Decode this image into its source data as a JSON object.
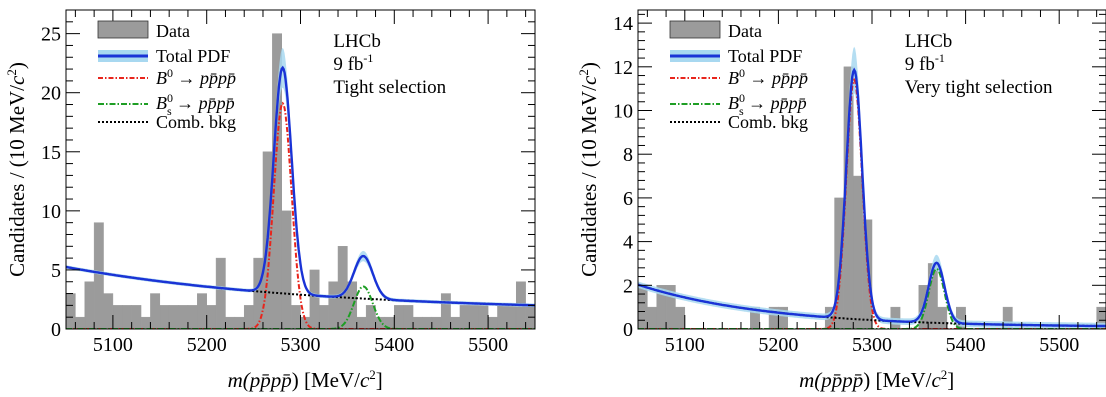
{
  "chart_data": [
    {
      "type": "bar",
      "x_bins_start": 5050,
      "x_bin_width": 10,
      "xlim": [
        5050,
        5550
      ],
      "ylim": [
        0,
        27
      ],
      "yticks": [
        0,
        5,
        10,
        15,
        20,
        25
      ],
      "xticks": [
        5100,
        5200,
        5300,
        5400,
        5500
      ],
      "xlabel_main": "m(",
      "xlabel_particles": "pp̄pp̄",
      "xlabel_units": ") [MeV/",
      "xlabel_c": "c",
      "xlabel_end": "]",
      "ylabel_main": "Candidates / (10 MeV/",
      "ylabel_c": "c",
      "ylabel_end": ")",
      "experiment": "LHCb",
      "lumi_value": "9 fb",
      "lumi_exp": "-1",
      "selection": "Tight selection",
      "legend": [
        "Data",
        "Total PDF",
        "B0 → pp̄pp̄",
        "Bs0 → pp̄pp̄",
        "Comb. bkg"
      ],
      "hist": [
        3,
        1,
        4,
        9,
        3,
        2,
        2,
        2,
        1,
        3,
        2,
        2,
        2,
        2,
        3,
        2,
        6,
        1,
        1,
        2,
        6,
        15,
        25,
        10,
        2,
        1,
        5,
        2,
        4,
        7,
        4,
        1,
        2,
        1,
        1,
        2,
        2,
        1,
        1,
        1,
        3,
        1,
        2,
        2,
        2,
        1,
        2,
        2,
        4,
        2
      ],
      "model": {
        "bkg_a": 3.8,
        "bkg_b": 1.45,
        "bkg_tau": 260,
        "b0_amp": 19.1,
        "b0_mean": 5281,
        "b0_sigma": 9.5,
        "bs_amp": 3.6,
        "bs_mean": 5367,
        "bs_sigma": 10.0
      }
    },
    {
      "type": "bar",
      "x_bins_start": 5050,
      "x_bin_width": 10,
      "xlim": [
        5050,
        5550
      ],
      "ylim": [
        0,
        14.6
      ],
      "yticks": [
        0,
        2,
        4,
        6,
        8,
        10,
        12,
        14
      ],
      "xticks": [
        5100,
        5200,
        5300,
        5400,
        5500
      ],
      "xlabel_main": "m(",
      "xlabel_particles": "pp̄pp̄",
      "xlabel_units": ") [MeV/",
      "xlabel_c": "c",
      "xlabel_end": "]",
      "ylabel_main": "Candidates / (10 MeV/",
      "ylabel_c": "c",
      "ylabel_end": ")",
      "experiment": "LHCb",
      "lumi_value": "9 fb",
      "lumi_exp": "-1",
      "selection": "Very tight selection",
      "legend": [
        "Data",
        "Total PDF",
        "B0 → pp̄pp̄",
        "Bs0 → pp̄pp̄",
        "Comb. bkg"
      ],
      "hist": [
        2,
        1,
        2,
        2,
        1,
        0,
        0,
        0,
        0,
        0,
        0,
        0,
        1,
        0,
        1,
        1,
        0,
        0,
        0,
        0,
        1,
        6,
        12,
        7,
        5,
        0,
        0,
        1,
        0,
        0,
        2,
        3,
        1,
        0,
        1,
        0,
        0,
        0,
        0,
        1,
        0,
        0,
        0,
        0,
        0,
        0,
        0,
        0,
        0,
        1
      ],
      "model": {
        "bkg_a": 1.95,
        "bkg_b": 0.08,
        "bkg_tau": 140,
        "b0_amp": 11.4,
        "b0_mean": 5281,
        "b0_sigma": 8.5,
        "bs_amp": 2.75,
        "bs_mean": 5369,
        "bs_sigma": 8.5
      }
    }
  ],
  "colors": {
    "data_fill": "#9b9b9b",
    "data_stroke": "#7b7b7b",
    "total": "#1a33d6",
    "band": "#a8d8f0",
    "b0": "#e8251c",
    "bs": "#1e9e24",
    "bkg": "#000000"
  }
}
